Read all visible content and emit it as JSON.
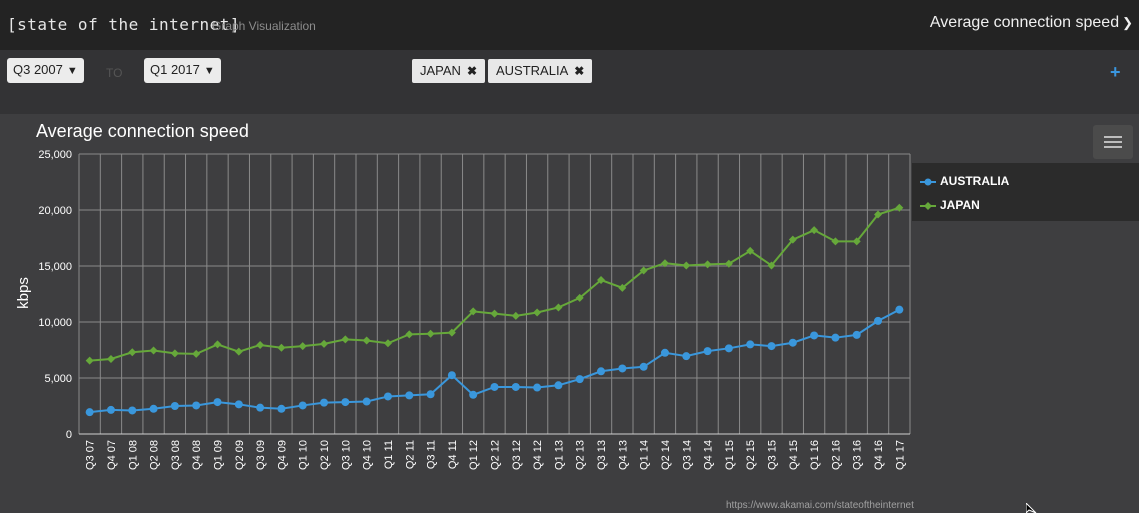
{
  "header": {
    "brand": "[state of the internet]",
    "subtitle": "Graph Visualization",
    "metric": "Average connection speed"
  },
  "filters": {
    "from": "Q3 2007",
    "to_label": "TO",
    "to": "Q1 2017",
    "tags": [
      "JAPAN",
      "AUSTRALIA"
    ],
    "add_icon": "plus-icon"
  },
  "footer": {
    "source": "https://www.akamai.com/stateoftheinternet"
  },
  "colors": {
    "australia": "#3a97dc",
    "japan": "#66a83a",
    "background": "#3e3e40"
  },
  "chart_data": {
    "type": "line",
    "title": "Average connection speed",
    "ylabel": "kbps",
    "xlabel": "",
    "ylim": [
      0,
      25000
    ],
    "yticks": [
      0,
      5000,
      10000,
      15000,
      20000,
      25000
    ],
    "ytick_labels": [
      "0",
      "5,000",
      "10,000",
      "15,000",
      "20,000",
      "25,000"
    ],
    "grid": true,
    "legend_position": "right",
    "categories": [
      "Q3 07",
      "Q4 07",
      "Q1 08",
      "Q2 08",
      "Q3 08",
      "Q4 08",
      "Q1 09",
      "Q2 09",
      "Q3 09",
      "Q4 09",
      "Q1 10",
      "Q2 10",
      "Q3 10",
      "Q4 10",
      "Q1 11",
      "Q2 11",
      "Q3 11",
      "Q4 11",
      "Q1 12",
      "Q2 12",
      "Q3 12",
      "Q4 12",
      "Q1 13",
      "Q2 13",
      "Q3 13",
      "Q4 13",
      "Q1 14",
      "Q2 14",
      "Q3 14",
      "Q4 14",
      "Q1 15",
      "Q2 15",
      "Q3 15",
      "Q4 15",
      "Q1 16",
      "Q2 16",
      "Q3 16",
      "Q4 16",
      "Q1 17"
    ],
    "series": [
      {
        "name": "AUSTRALIA",
        "color": "#3a97dc",
        "marker": "circle",
        "values": [
          1950,
          2150,
          2100,
          2250,
          2500,
          2550,
          2850,
          2650,
          2350,
          2250,
          2550,
          2800,
          2850,
          2900,
          3350,
          3450,
          3550,
          5250,
          3500,
          4200,
          4200,
          4150,
          4350,
          4900,
          5600,
          5850,
          6000,
          7250,
          6950,
          7400,
          7650,
          8000,
          7850,
          8150,
          8800,
          8600,
          8850,
          10100,
          11100
        ]
      },
      {
        "name": "JAPAN",
        "color": "#66a83a",
        "marker": "diamond",
        "values": [
          6550,
          6700,
          7300,
          7450,
          7200,
          7150,
          8000,
          7350,
          7950,
          7700,
          7850,
          8050,
          8450,
          8350,
          8100,
          8900,
          8950,
          9050,
          10950,
          10750,
          10550,
          10850,
          11300,
          12150,
          13750,
          13050,
          14600,
          15250,
          15050,
          15150,
          15200,
          16350,
          15050,
          17350,
          18200,
          17200,
          17200,
          19600,
          20200
        ]
      }
    ]
  }
}
